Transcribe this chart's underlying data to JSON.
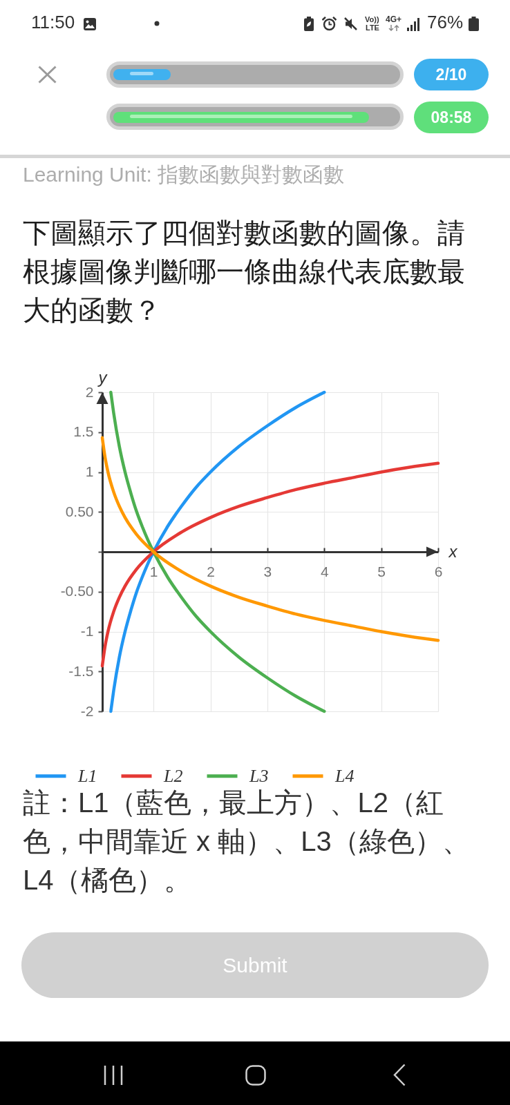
{
  "chart_data": {
    "type": "line",
    "title": "下圖顯示了四個對數函數的圖像。請根據圖像判斷哪一條曲線代表底數最大的函數？",
    "xlabel": "x",
    "ylabel": "y",
    "annotations": [
      "11:50",
      "Vo))",
      "LTE",
      "4G+",
      "76%",
      "2/10",
      "08:58",
      "Learning Unit: 指數函數與對數函數",
      "註：L1（藍色，最上方）、L2（紅色，中間靠近 x 軸）、L3（綠色）、L4（橘色）。",
      "Submit"
    ],
    "series": [
      {
        "name": "L1",
        "color": "#2196f3",
        "x": [
          0.25,
          0.3,
          0.4,
          0.5,
          0.6,
          0.7,
          0.8,
          0.9,
          1,
          1.25,
          1.5,
          1.75,
          2,
          2.5,
          3,
          3.5,
          4
        ],
        "values": [
          -2,
          -1.74,
          -1.32,
          -1,
          -0.74,
          -0.51,
          -0.32,
          -0.15,
          0,
          0.32,
          0.58,
          0.81,
          1,
          1.32,
          1.58,
          1.81,
          2
        ]
      },
      {
        "name": "L2",
        "color": "#e53935",
        "x": [
          0.1,
          0.15,
          0.2,
          0.3,
          0.4,
          0.5,
          0.7,
          1,
          1.5,
          2,
          2.5,
          3,
          3.5,
          4,
          4.5,
          5,
          5.5,
          6
        ],
        "values": [
          -1.43,
          -1.18,
          -1,
          -0.75,
          -0.57,
          -0.43,
          -0.22,
          0,
          0.25,
          0.43,
          0.57,
          0.68,
          0.78,
          0.86,
          0.93,
          1,
          1.06,
          1.11
        ]
      },
      {
        "name": "L3",
        "color": "#4caf50",
        "x": [
          0.25,
          0.3,
          0.4,
          0.5,
          0.6,
          0.7,
          0.8,
          0.9,
          1,
          1.25,
          1.5,
          1.75,
          2,
          2.5,
          3,
          3.5,
          4
        ],
        "values": [
          2,
          1.74,
          1.32,
          1,
          0.74,
          0.51,
          0.32,
          0.15,
          0,
          -0.32,
          -0.58,
          -0.81,
          -1,
          -1.32,
          -1.58,
          -1.81,
          -2
        ]
      },
      {
        "name": "L4",
        "color": "#ff9800",
        "x": [
          0.1,
          0.15,
          0.2,
          0.3,
          0.4,
          0.5,
          0.7,
          1,
          1.5,
          2,
          2.5,
          3,
          3.5,
          4,
          4.5,
          5,
          5.5,
          6
        ],
        "values": [
          1.43,
          1.18,
          1,
          0.75,
          0.57,
          0.43,
          0.22,
          0,
          -0.25,
          -0.43,
          -0.57,
          -0.68,
          -0.78,
          -0.86,
          -0.93,
          -1,
          -1.06,
          -1.11
        ]
      }
    ],
    "xlim": [
      0.1,
      6
    ],
    "xticks": [
      1,
      2,
      3,
      4,
      5,
      6
    ],
    "ylim": [
      -2,
      2
    ],
    "yticks": [
      2,
      1.5,
      1,
      {
        "value": 0.5,
        "label": "0.50"
      },
      {
        "value": 0,
        "label": null
      },
      {
        "value": -0.5,
        "label": "-0.50"
      },
      -1,
      -1.5,
      -2
    ],
    "grid": true,
    "legend": "bottom",
    "line_style": "solid"
  }
}
